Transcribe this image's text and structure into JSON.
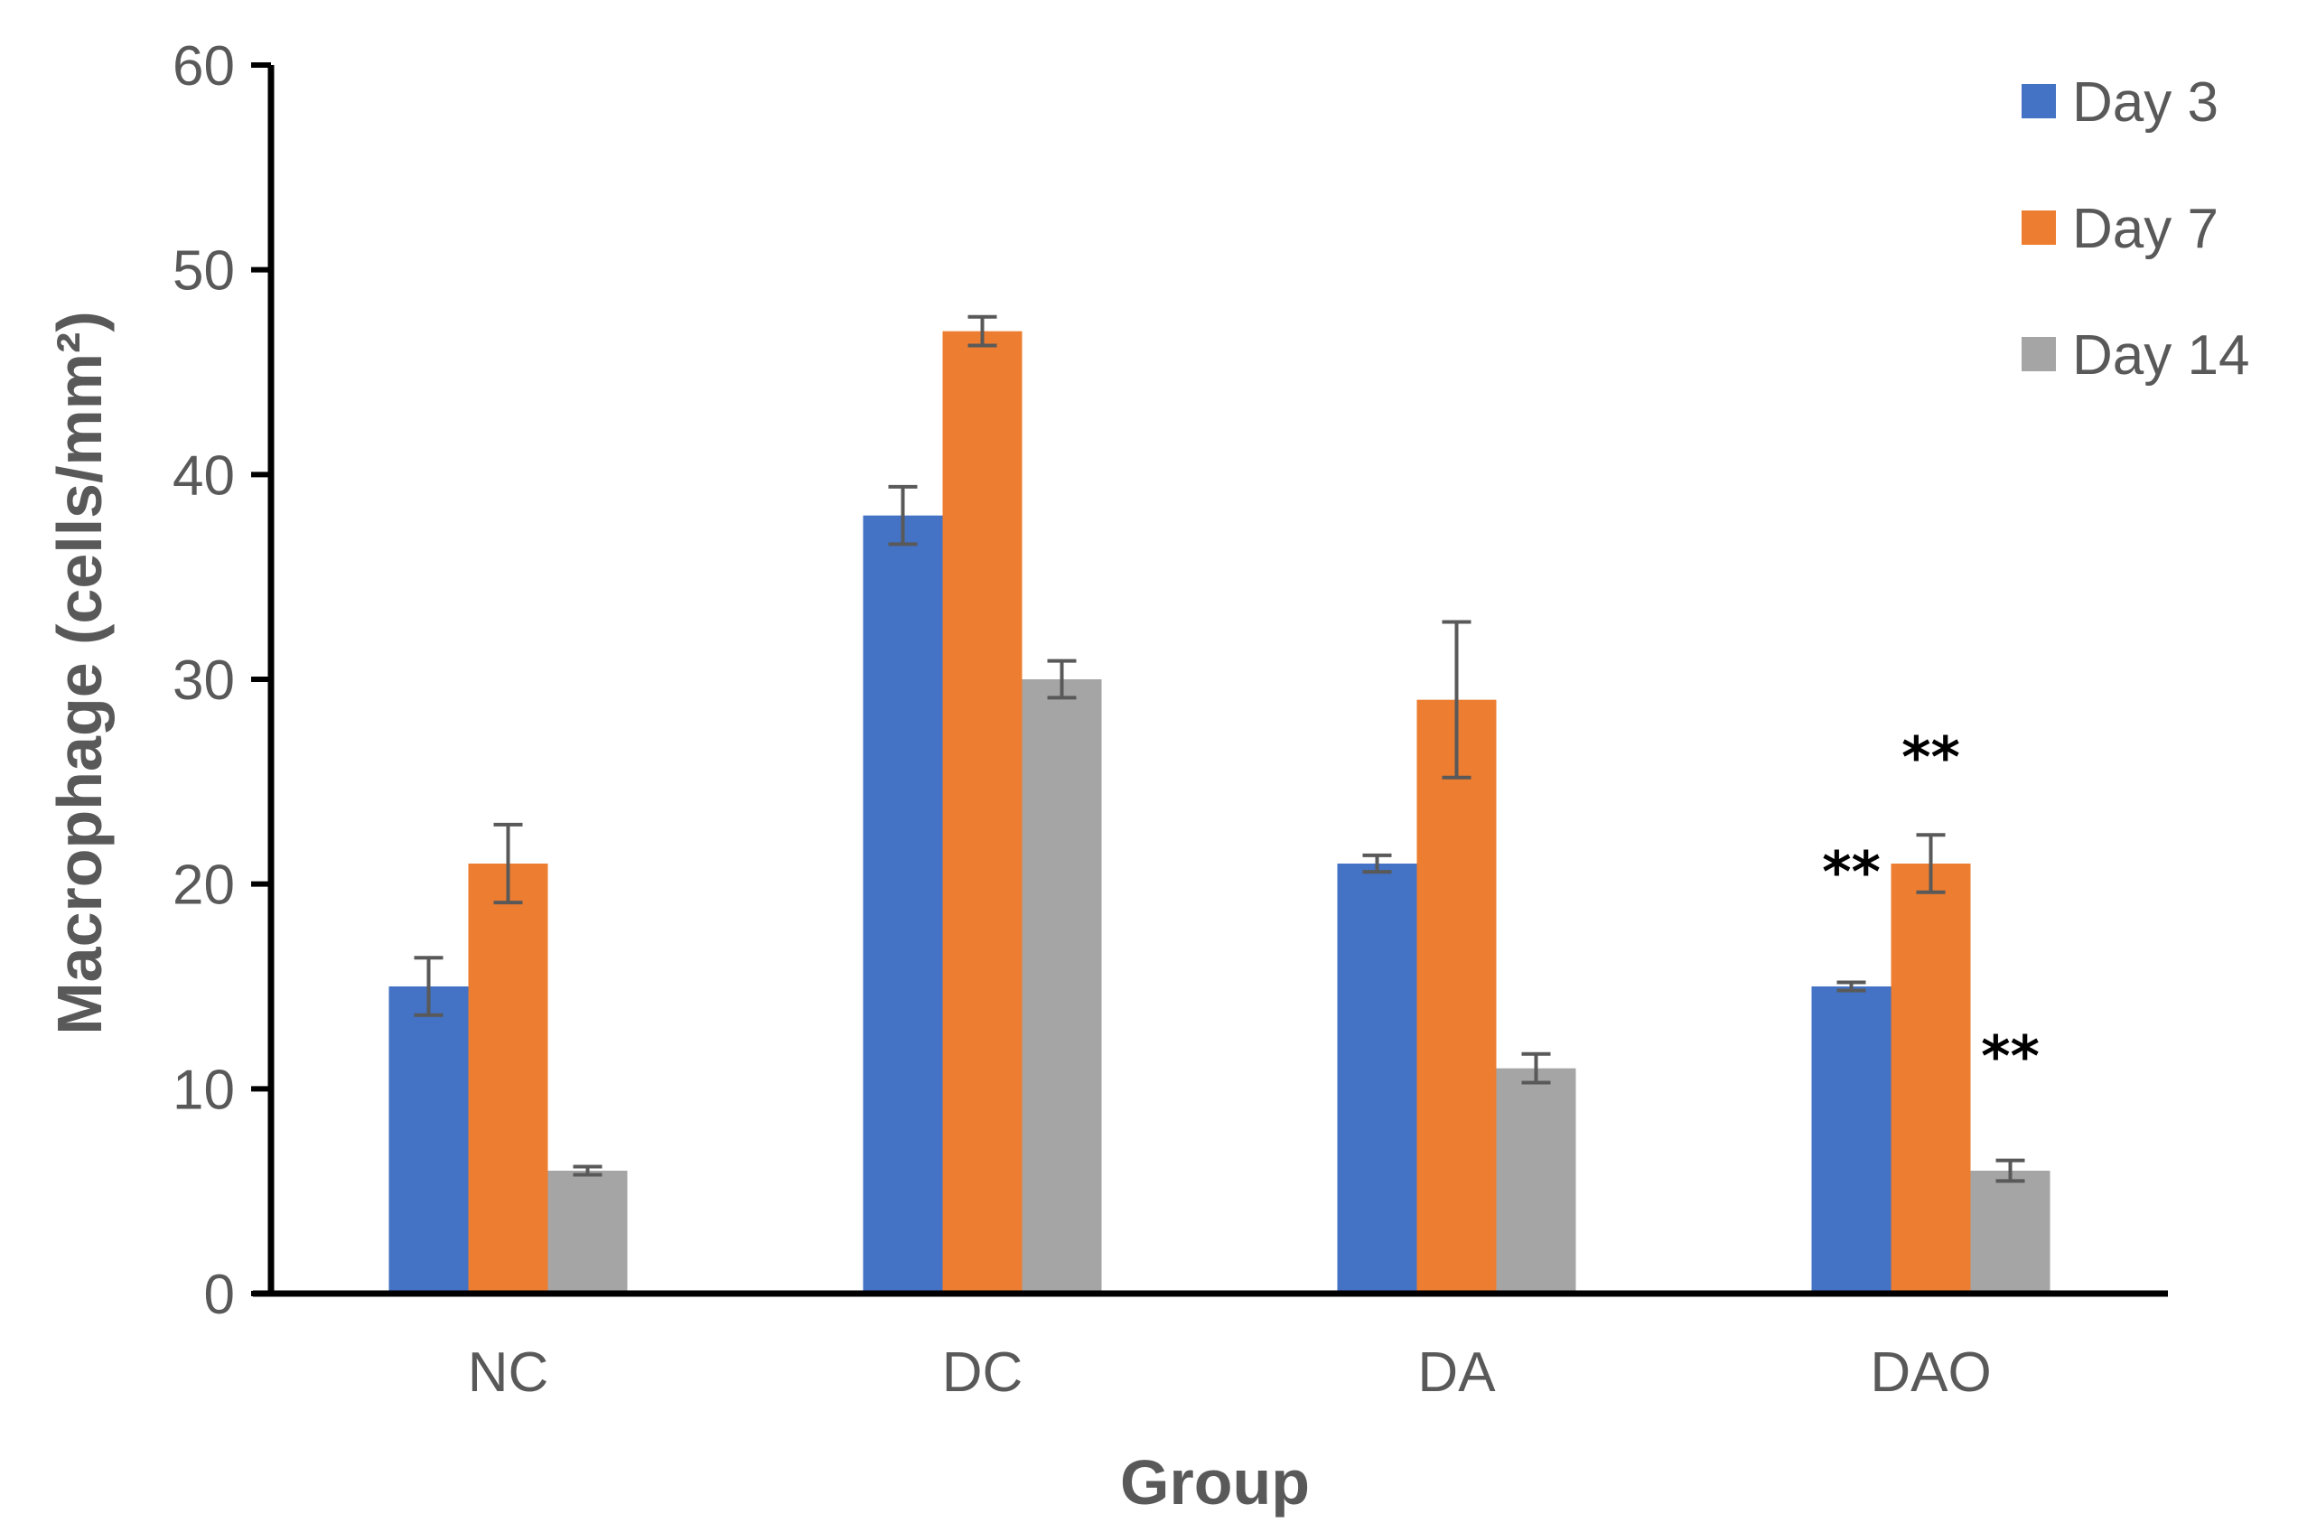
{
  "chart_data": {
    "type": "bar",
    "title": "",
    "xlabel": "Group",
    "ylabel": "Macrophage (cells/mm²)",
    "ylim": [
      0,
      60
    ],
    "yticks": [
      0,
      10,
      20,
      30,
      40,
      50,
      60
    ],
    "grid": false,
    "legend_position": "top-right",
    "categories": [
      "NC",
      "DC",
      "DA",
      "DAO"
    ],
    "series": [
      {
        "name": "Day 3",
        "color": "#4472C4",
        "values": [
          15,
          38,
          21,
          15
        ],
        "errors": [
          1.4,
          1.4,
          0.4,
          0.2
        ]
      },
      {
        "name": "Day 7",
        "color": "#ED7D31",
        "values": [
          21,
          47,
          29,
          21
        ],
        "errors": [
          1.9,
          0.7,
          3.8,
          1.4
        ]
      },
      {
        "name": "Day 14",
        "color": "#A5A5A5",
        "values": [
          6,
          30,
          11,
          6
        ],
        "errors": [
          0.2,
          0.9,
          0.7,
          0.5
        ]
      }
    ],
    "annotations": [
      {
        "text": "**",
        "category": "DAO",
        "series": "Day 3",
        "y": 20.6
      },
      {
        "text": "**",
        "category": "DAO",
        "series": "Day 7",
        "y": 26.2
      },
      {
        "text": "**",
        "category": "DAO",
        "series": "Day 14",
        "y": 11.6
      }
    ]
  }
}
